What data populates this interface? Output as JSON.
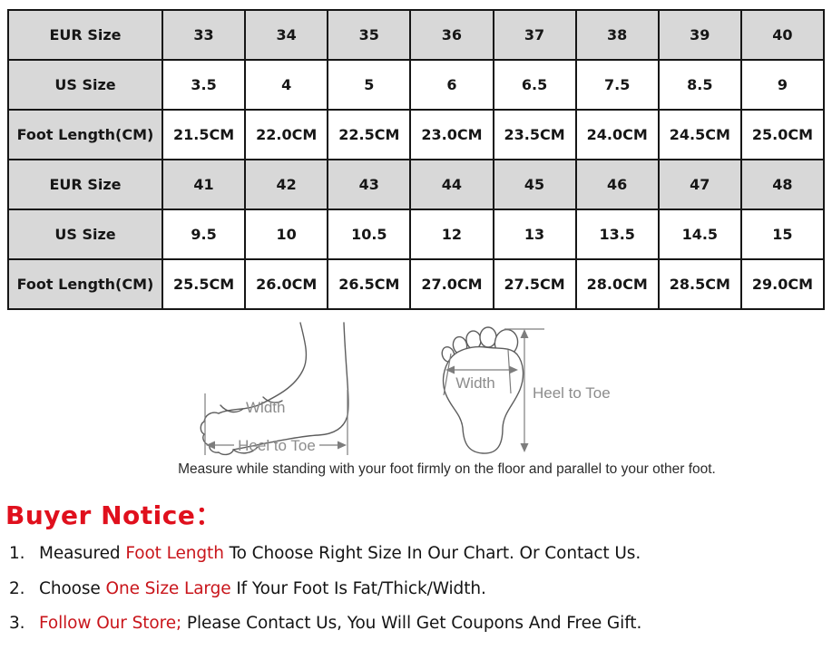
{
  "size_table": {
    "rows": [
      {
        "label": "EUR Size",
        "shaded": true,
        "values": [
          "33",
          "34",
          "35",
          "36",
          "37",
          "38",
          "39",
          "40"
        ]
      },
      {
        "label": "US Size",
        "shaded": false,
        "values": [
          "3.5",
          "4",
          "5",
          "6",
          "6.5",
          "7.5",
          "8.5",
          "9"
        ]
      },
      {
        "label": "Foot Length(CM)",
        "shaded": false,
        "values": [
          "21.5CM",
          "22.0CM",
          "22.5CM",
          "23.0CM",
          "23.5CM",
          "24.0CM",
          "24.5CM",
          "25.0CM"
        ]
      },
      {
        "label": "EUR Size",
        "shaded": true,
        "values": [
          "41",
          "42",
          "43",
          "44",
          "45",
          "46",
          "47",
          "48"
        ]
      },
      {
        "label": "US Size",
        "shaded": false,
        "values": [
          "9.5",
          "10",
          "10.5",
          "12",
          "13",
          "13.5",
          "14.5",
          "15"
        ]
      },
      {
        "label": "Foot Length(CM)",
        "shaded": false,
        "values": [
          "25.5CM",
          "26.0CM",
          "26.5CM",
          "27.0CM",
          "27.5CM",
          "28.0CM",
          "28.5CM",
          "29.0CM"
        ]
      }
    ]
  },
  "measurement_diagram": {
    "side_view_width_label": "Width",
    "side_view_length_label": "Heel to Toe",
    "top_view_width_label": "Width",
    "top_view_length_label": "Heel to Toe",
    "caption": "Measure while standing with your foot firmly on the floor and parallel to your other foot."
  },
  "buyer_notice": {
    "title": "Buyer Notice：",
    "items": [
      {
        "number": "1.",
        "pre": "Measured ",
        "highlight": "Foot Length",
        "post": " To Choose Right Size In Our Chart. Or Contact Us."
      },
      {
        "number": "2.",
        "pre": "Choose ",
        "highlight": "One Size Large",
        "post": " If Your Foot Is Fat/Thick/Width."
      },
      {
        "number": "3.",
        "pre": "",
        "highlight": "Follow Our Store;",
        "post": " Please Contact Us, You Will Get Coupons And Free Gift."
      }
    ]
  },
  "colors": {
    "notice_red": "#e0101d",
    "highlight_red": "#c9151b",
    "table_shade": "#d8d8d8",
    "table_border": "#161616",
    "diagram_gray": "#8c8c8c"
  }
}
